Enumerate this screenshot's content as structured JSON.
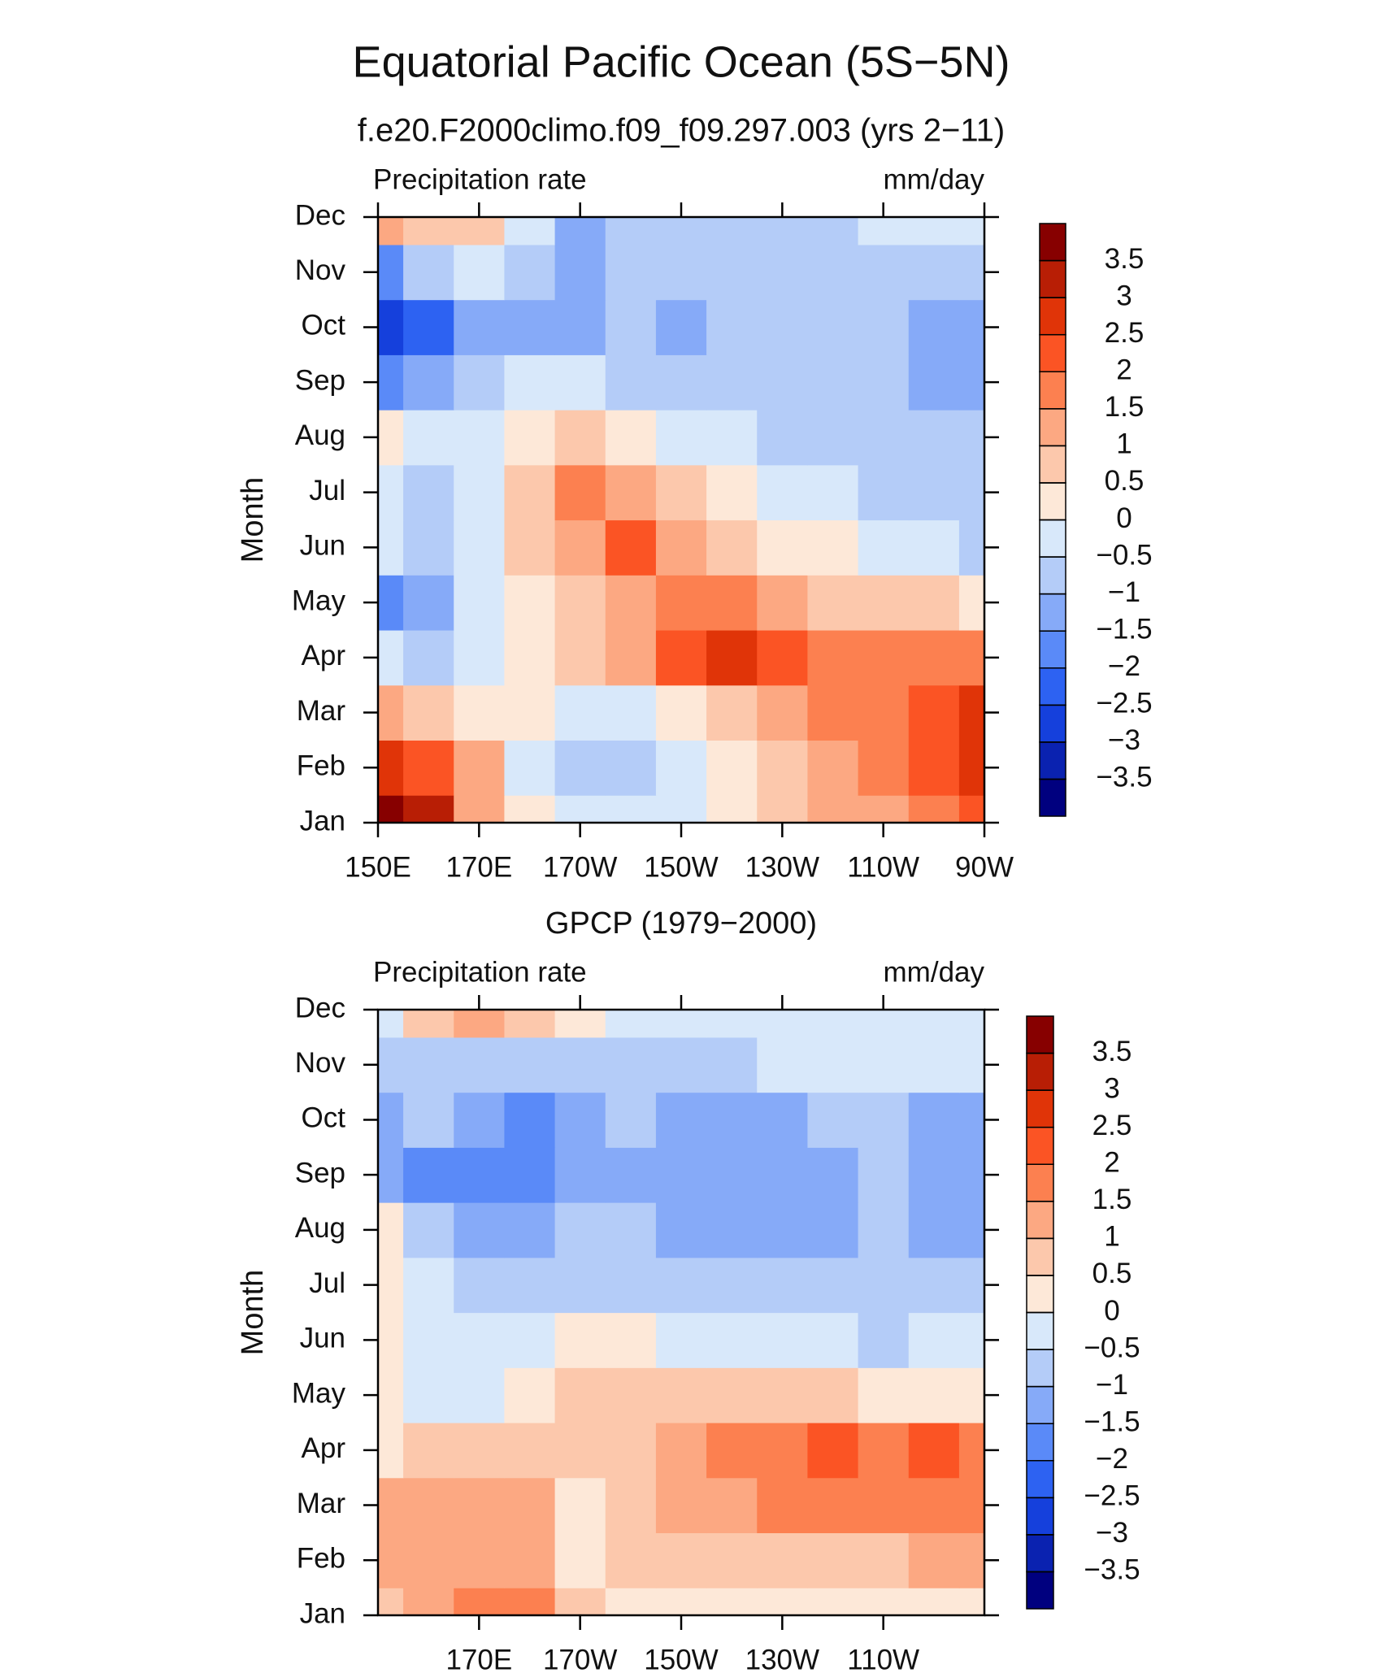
{
  "title": "Equatorial Pacific Ocean (5S−5N)",
  "chart_data": [
    {
      "type": "heatmap",
      "title": "f.e20.F2000climo.f09_f09.297.003 (yrs 2−11)",
      "left_label": "Precipitation rate",
      "right_label": "mm/day",
      "ylabel": "Month",
      "y": [
        "Jan",
        "Feb",
        "Mar",
        "Apr",
        "May",
        "Jun",
        "Jul",
        "Aug",
        "Sep",
        "Oct",
        "Nov",
        "Dec"
      ],
      "x": [
        150,
        160,
        170,
        180,
        190,
        200,
        210,
        220,
        230,
        240,
        250,
        260,
        270
      ],
      "xlim": [
        150,
        270
      ],
      "xticks": [
        {
          "value": 150,
          "label": "150E"
        },
        {
          "value": 170,
          "label": "170E"
        },
        {
          "value": 190,
          "label": "170W"
        },
        {
          "value": 210,
          "label": "150W"
        },
        {
          "value": 230,
          "label": "130W"
        },
        {
          "value": 250,
          "label": "110W"
        },
        {
          "value": 270,
          "label": "90W"
        }
      ],
      "z": [
        [
          3.8,
          3,
          1,
          0,
          -0.5,
          -0.5,
          -0.3,
          0.2,
          0.5,
          1,
          1.2,
          1.5,
          2
        ],
        [
          2.5,
          2,
          1,
          -0.5,
          -0.8,
          -0.8,
          -0.3,
          0.3,
          0.6,
          1.2,
          1.5,
          2,
          2.5
        ],
        [
          1,
          0.7,
          0.3,
          0,
          -0.3,
          -0.3,
          0.3,
          0.7,
          1,
          1.5,
          1.8,
          2.2,
          2.7
        ],
        [
          -0.5,
          -0.8,
          -0.3,
          0.3,
          0.7,
          1.2,
          2,
          2.5,
          2,
          1.8,
          1.7,
          1.6,
          1.5
        ],
        [
          -2,
          -1.5,
          -0.5,
          0.3,
          0.8,
          1.2,
          1.8,
          1.5,
          1.2,
          0.8,
          0.7,
          0.5,
          0.2
        ],
        [
          -0.5,
          -0.8,
          -0.3,
          0.5,
          1.2,
          2.2,
          1.2,
          0.8,
          0.4,
          0.1,
          -0.2,
          -0.4,
          -0.6
        ],
        [
          -0.5,
          -0.7,
          -0.2,
          0.5,
          1.5,
          1.2,
          0.7,
          0.2,
          -0.1,
          -0.4,
          -0.6,
          -0.8,
          -1
        ],
        [
          0.3,
          -0.3,
          -0.2,
          0.4,
          0.6,
          0.3,
          -0.2,
          -0.5,
          -0.7,
          -0.8,
          -0.8,
          -0.9,
          -1
        ],
        [
          -2,
          -1.5,
          -0.8,
          -0.5,
          -0.3,
          -0.7,
          -0.8,
          -0.8,
          -0.8,
          -0.8,
          -0.8,
          -1.2,
          -1.5
        ],
        [
          -2.8,
          -2.5,
          -1.5,
          -1.2,
          -1.2,
          -1,
          -1.2,
          -0.8,
          -0.8,
          -0.8,
          -0.8,
          -1.2,
          -1.2
        ],
        [
          -1.8,
          -1,
          -0.5,
          -0.8,
          -1.2,
          -1,
          -0.8,
          -0.8,
          -0.8,
          -0.8,
          -0.8,
          -0.8,
          -0.8
        ],
        [
          1,
          0.8,
          0.5,
          -0.5,
          -1.2,
          -0.8,
          -0.8,
          -0.8,
          -0.8,
          -0.8,
          -0.5,
          -0.4,
          -0.5
        ]
      ],
      "levels": [
        {
          "value": -3.5,
          "label": "−3.5"
        },
        {
          "value": -3,
          "label": "−3"
        },
        {
          "value": -2.5,
          "label": "−2.5"
        },
        {
          "value": -2,
          "label": "−2"
        },
        {
          "value": -1.5,
          "label": "−1.5"
        },
        {
          "value": -1,
          "label": "−1"
        },
        {
          "value": -0.5,
          "label": "−0.5"
        },
        0,
        0.5,
        1,
        1.5,
        2,
        2.5,
        3,
        3.5
      ],
      "colors": [
        "#00007f",
        "#0a22b0",
        "#1540dc",
        "#2d62f2",
        "#5a8af8",
        "#86aaf8",
        "#b4ccf8",
        "#d8e8fa",
        "#fde8d8",
        "#fcc8ac",
        "#fca882",
        "#fc8050",
        "#fb5424",
        "#e03408",
        "#b81e05",
        "#870000"
      ]
    },
    {
      "type": "heatmap",
      "title": "GPCP (1979−2000)",
      "left_label": "Precipitation rate",
      "right_label": "mm/day",
      "ylabel": "Month",
      "y": [
        "Jan",
        "Feb",
        "Mar",
        "Apr",
        "May",
        "Jun",
        "Jul",
        "Aug",
        "Sep",
        "Oct",
        "Nov",
        "Dec"
      ],
      "x": [
        150,
        160,
        170,
        180,
        190,
        200,
        210,
        220,
        230,
        240,
        250,
        260,
        270
      ],
      "xlim": [
        150,
        270
      ],
      "xticks": [
        {
          "value": 170,
          "label": "170E"
        },
        {
          "value": 190,
          "label": "170W"
        },
        {
          "value": 210,
          "label": "150W"
        },
        {
          "value": 230,
          "label": "130W"
        },
        {
          "value": 250,
          "label": "110W"
        }
      ],
      "z": [
        [
          0.8,
          1,
          1.5,
          1.8,
          0.5,
          0.2,
          0.1,
          0.1,
          0.1,
          0.1,
          0.1,
          0.1,
          0.2
        ],
        [
          1,
          1.2,
          1,
          1.2,
          0.3,
          0.5,
          0.6,
          0.7,
          0.8,
          0.8,
          0.9,
          1,
          1.3
        ],
        [
          1,
          1.3,
          1.2,
          1,
          0.4,
          0.7,
          1,
          1.3,
          1.6,
          1.6,
          1.7,
          1.8,
          1.6
        ],
        [
          0.3,
          0.8,
          0.8,
          0.6,
          0.7,
          0.8,
          1.3,
          1.6,
          1.8,
          2,
          1.5,
          2,
          1.8
        ],
        [
          0.1,
          -0.2,
          -0.3,
          0.3,
          0.7,
          0.8,
          0.8,
          0.8,
          0.7,
          0.6,
          0.4,
          0.3,
          0.2
        ],
        [
          0.3,
          -0.3,
          -0.5,
          -0.5,
          0.2,
          0.2,
          -0.1,
          -0.3,
          -0.5,
          -0.5,
          -0.6,
          -0.4,
          -0.3
        ],
        [
          0.3,
          -0.5,
          -0.7,
          -0.8,
          -0.6,
          -0.6,
          -0.7,
          -0.8,
          -0.8,
          -0.8,
          -0.8,
          -0.8,
          -1
        ],
        [
          0.2,
          -0.8,
          -1.2,
          -1.2,
          -1,
          -1,
          -1.3,
          -1.3,
          -1.3,
          -1.3,
          -0.9,
          -1.1,
          -1.2
        ],
        [
          -1.3,
          -1.6,
          -1.8,
          -1.8,
          -1.3,
          -1.2,
          -1.3,
          -1.3,
          -1.3,
          -1.2,
          -0.8,
          -1.2,
          -1.3
        ],
        [
          -1.2,
          -1,
          -1.3,
          -2,
          -1.3,
          -1,
          -1.2,
          -1.3,
          -1.2,
          -0.9,
          -0.8,
          -1.2,
          -1.2
        ],
        [
          -1,
          -0.8,
          -0.8,
          -0.8,
          -0.7,
          -0.7,
          -0.6,
          -0.6,
          -0.5,
          -0.4,
          -0.3,
          -0.4,
          -0.5
        ],
        [
          -0.3,
          0.5,
          1.2,
          0.7,
          0.3,
          -0.2,
          -0.3,
          -0.3,
          -0.3,
          -0.3,
          -0.4,
          -0.4,
          -0.4
        ]
      ],
      "levels": [
        {
          "value": -3.5,
          "label": "−3.5"
        },
        {
          "value": -3,
          "label": "−3"
        },
        {
          "value": -2.5,
          "label": "−2.5"
        },
        {
          "value": -2,
          "label": "−2"
        },
        {
          "value": -1.5,
          "label": "−1.5"
        },
        {
          "value": -1,
          "label": "−1"
        },
        {
          "value": -0.5,
          "label": "−0.5"
        },
        0,
        0.5,
        1,
        1.5,
        2,
        2.5,
        3,
        3.5
      ],
      "colors": [
        "#00007f",
        "#0a22b0",
        "#1540dc",
        "#2d62f2",
        "#5a8af8",
        "#86aaf8",
        "#b4ccf8",
        "#d8e8fa",
        "#fde8d8",
        "#fcc8ac",
        "#fca882",
        "#fc8050",
        "#fb5424",
        "#e03408",
        "#b81e05",
        "#870000"
      ]
    }
  ]
}
